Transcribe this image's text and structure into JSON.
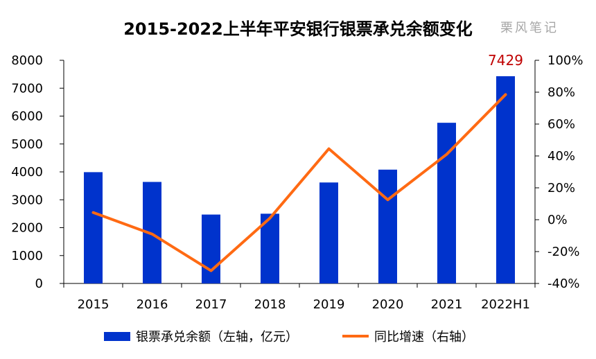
{
  "title": "2015-2022上半年平安银行银票承兑余额变化",
  "watermark": "栗风笔记",
  "colors": {
    "bar": "#0033CC",
    "line": "#FF6A13",
    "label": "#C00000"
  },
  "chart_data": {
    "type": "bar+line",
    "categories": [
      "2015",
      "2016",
      "2017",
      "2018",
      "2019",
      "2020",
      "2021",
      "2022H1"
    ],
    "series": [
      {
        "name": "银票承兑余额（左轴，亿元）",
        "type": "bar",
        "axis": "left",
        "values": [
          3990,
          3640,
          2470,
          2500,
          3620,
          4080,
          5760,
          7429
        ]
      },
      {
        "name": "同比增速（右轴）",
        "type": "line",
        "axis": "right",
        "values": [
          4.5,
          -9,
          -32,
          1,
          44.5,
          12.5,
          41,
          78.5
        ]
      }
    ],
    "data_labels": [
      {
        "category": "2022H1",
        "text": "7429"
      }
    ],
    "y_left": {
      "min": 0,
      "max": 8000,
      "step": 1000,
      "ticks": [
        "0",
        "1000",
        "2000",
        "3000",
        "4000",
        "5000",
        "6000",
        "7000",
        "8000"
      ]
    },
    "y_right": {
      "min": -40,
      "max": 100,
      "step": 20,
      "ticks": [
        "-40%",
        "-20%",
        "0%",
        "20%",
        "40%",
        "60%",
        "80%",
        "100%"
      ]
    },
    "grid": false,
    "legend_position": "bottom"
  }
}
